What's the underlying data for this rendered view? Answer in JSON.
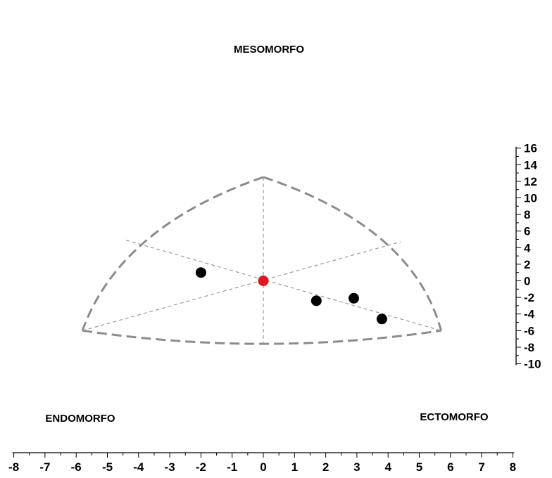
{
  "chart_data": {
    "type": "scatter",
    "title": "",
    "xlabel": "",
    "ylabel": "",
    "xlim": [
      -8,
      8
    ],
    "ylim": [
      -10,
      16
    ],
    "x_ticks": [
      -8,
      -7,
      -6,
      -5,
      -4,
      -3,
      -2,
      -1,
      0,
      1,
      2,
      3,
      4,
      5,
      6,
      7,
      8
    ],
    "y_ticks": [
      -10,
      -8,
      -6,
      -4,
      -2,
      0,
      2,
      4,
      6,
      8,
      10,
      12,
      14,
      16
    ],
    "vertex_labels": {
      "top": "MESOMORFO",
      "left": "ENDOMORFO",
      "right": "ECTOMORFO"
    },
    "somatochart_vertices": {
      "top": [
        0,
        12.5
      ],
      "left": [
        -5.8,
        -6.0
      ],
      "right": [
        5.7,
        -6.0
      ],
      "bottom": [
        0,
        -7.6
      ]
    },
    "points": [
      {
        "x": -2.0,
        "y": 1.0,
        "color": "#000000"
      },
      {
        "x": 1.7,
        "y": -2.4,
        "color": "#000000"
      },
      {
        "x": 2.9,
        "y": -2.1,
        "color": "#000000"
      },
      {
        "x": 3.8,
        "y": -4.6,
        "color": "#000000"
      },
      {
        "x": 0.0,
        "y": 0.0,
        "color": "#e0191c"
      }
    ],
    "colors": {
      "outline": "#8c8c8c",
      "guides": "#9a9a9a",
      "axis": "#000000"
    }
  }
}
